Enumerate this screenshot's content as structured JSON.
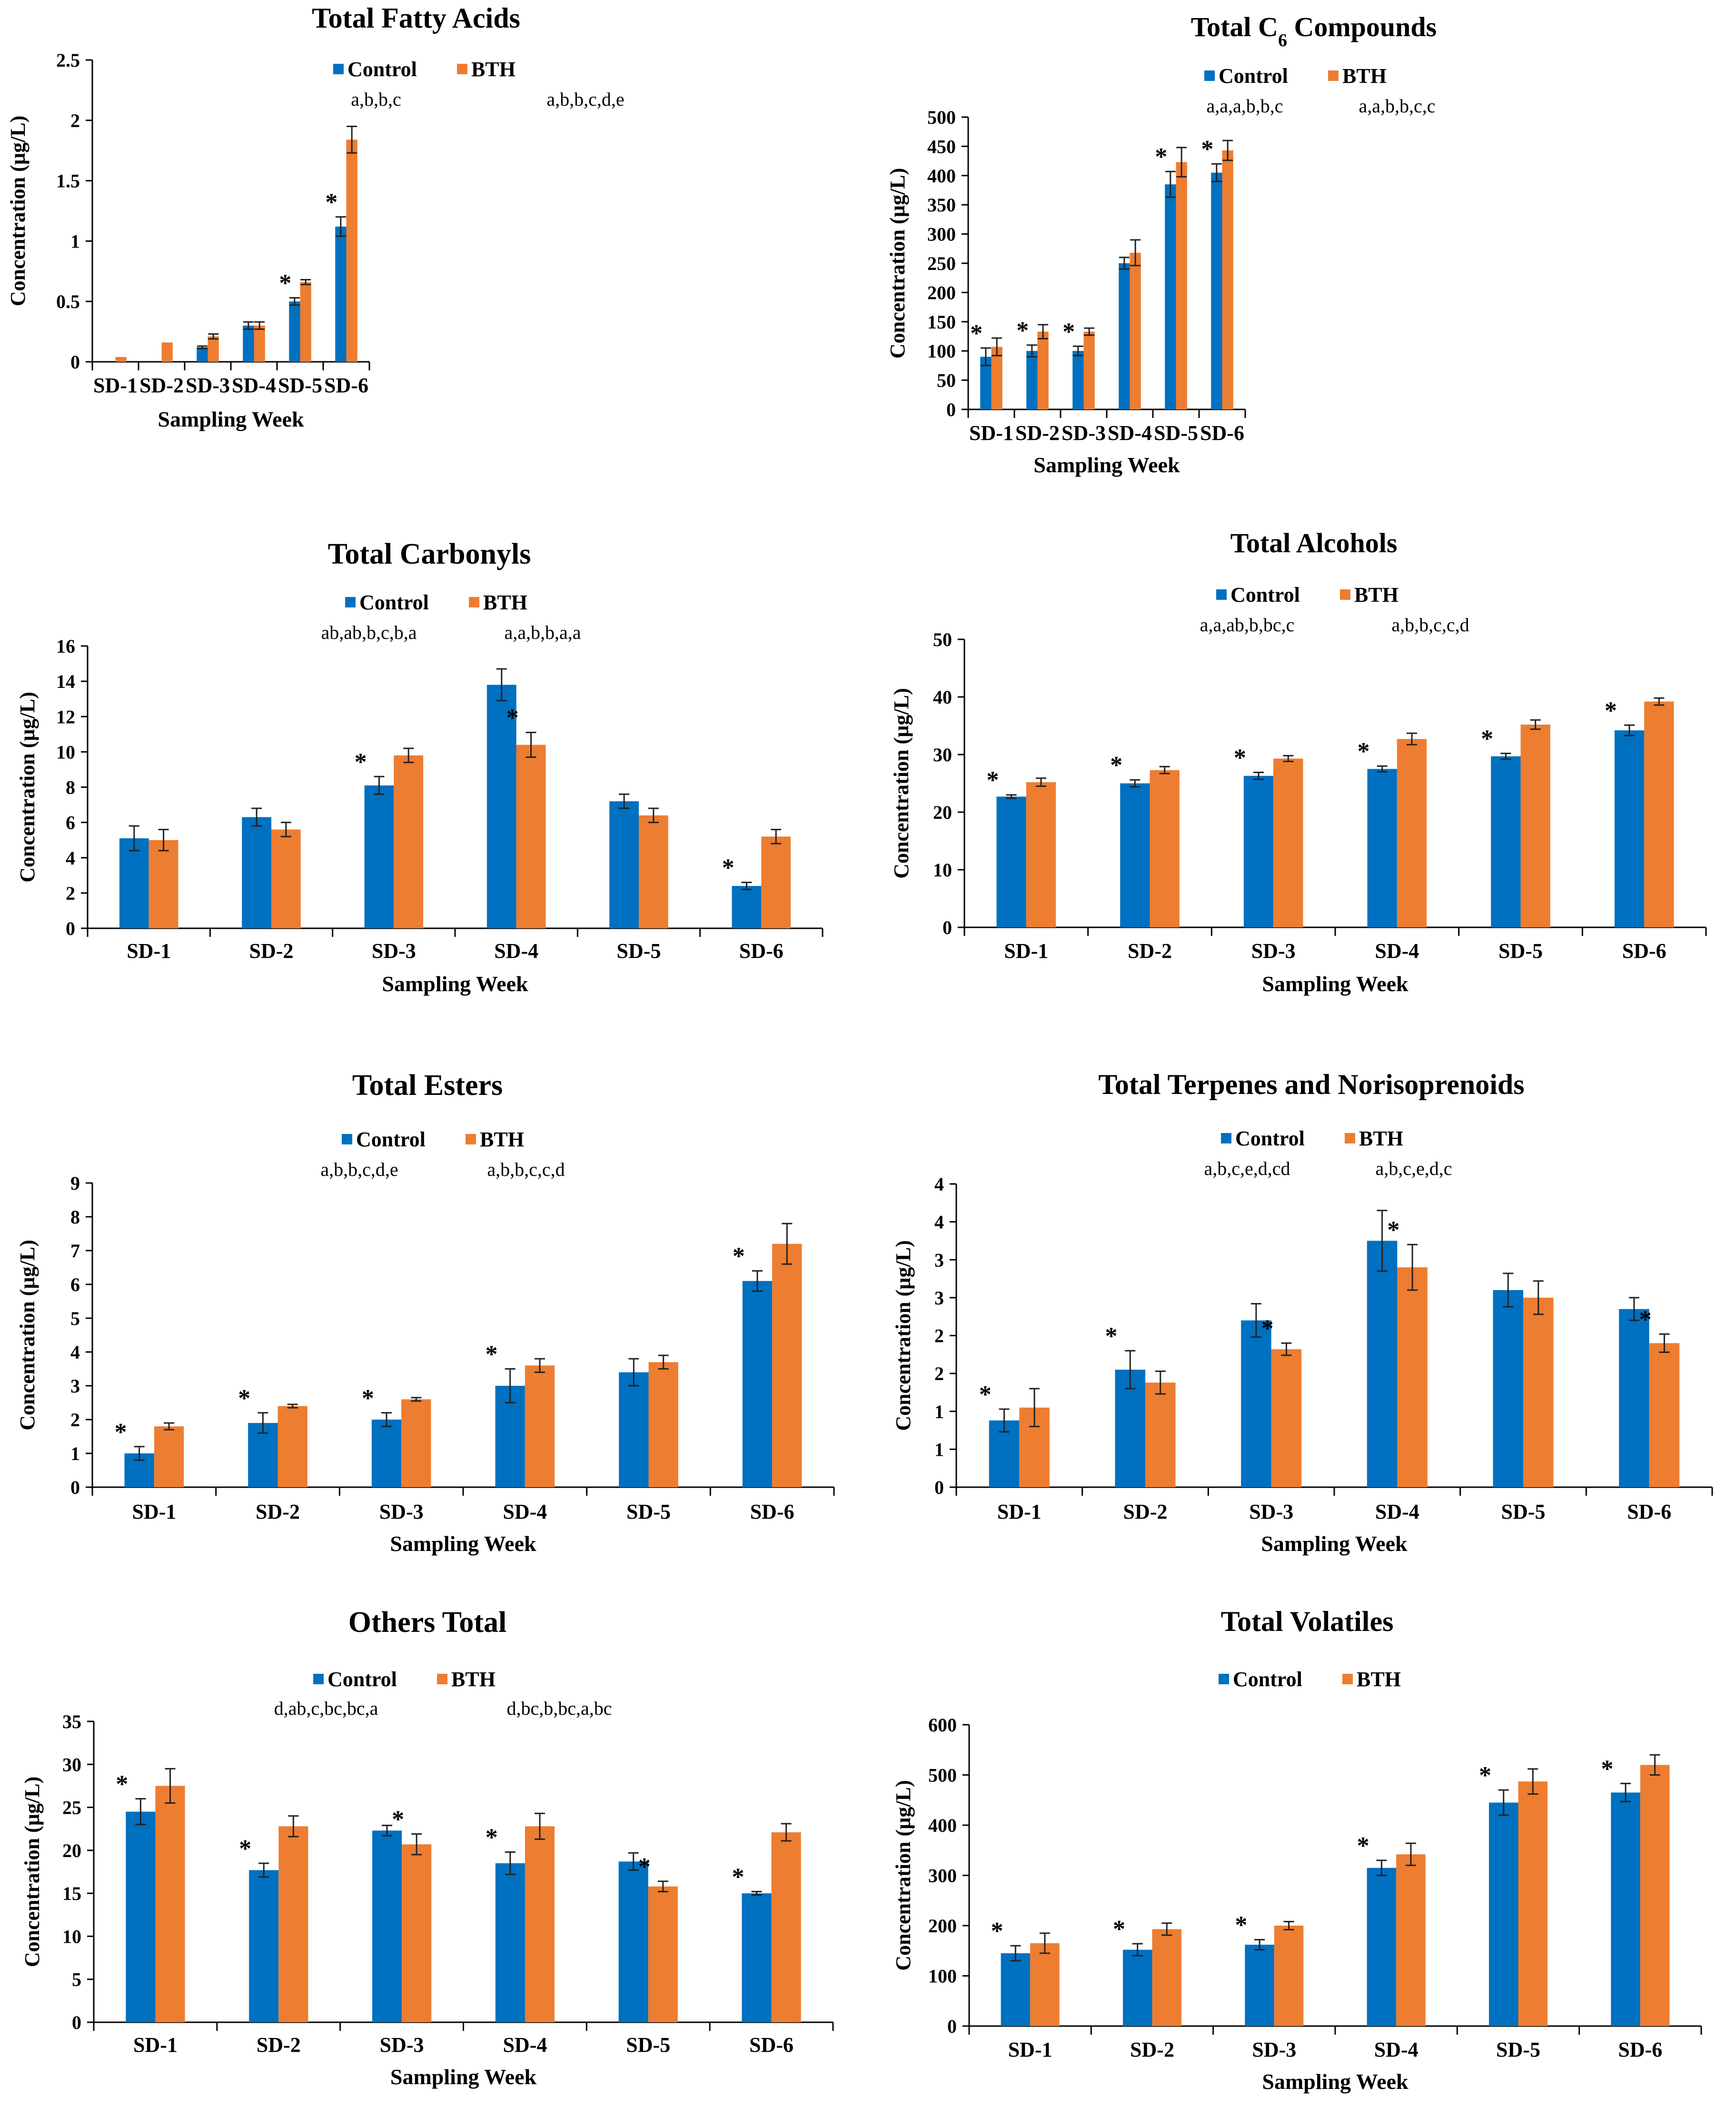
{
  "colors": {
    "control": "#0070C0",
    "bth": "#ED7D31",
    "axis": "#000000",
    "error": "#222222"
  },
  "legend": {
    "control": "Control",
    "bth": "BTH"
  },
  "chart_data": [
    {
      "type": "bar",
      "title": "Total Fatty Acids",
      "xlabel": "Sampling Week",
      "ylabel": "Concentration  (µg/L)",
      "categories": [
        "SD-1",
        "SD-2",
        "SD-3",
        "SD-4",
        "SD-5",
        "SD-6"
      ],
      "ylim": [
        0,
        2.5
      ],
      "yticks": [
        "0",
        "0.5",
        "1",
        "1.5",
        "2",
        "2.5"
      ],
      "series": [
        {
          "name": "Control",
          "values": [
            0,
            0,
            0.12,
            0.3,
            0.5,
            1.12
          ],
          "errors": [
            0,
            0,
            0.01,
            0.03,
            0.03,
            0.08
          ]
        },
        {
          "name": "BTH",
          "values": [
            0.04,
            0.16,
            0.21,
            0.3,
            0.66,
            1.84
          ],
          "errors": [
            0,
            0,
            0.02,
            0.03,
            0.02,
            0.11
          ]
        }
      ],
      "stars": [
        [
          "",
          ""
        ],
        [
          "",
          ""
        ],
        [
          "",
          ""
        ],
        [
          "",
          ""
        ],
        [
          "*",
          ""
        ],
        [
          "*",
          ""
        ]
      ],
      "letters": [
        "a,b,b,c",
        "a,b,b,c,d,e"
      ]
    },
    {
      "type": "bar",
      "title": "Total C6 Compounds",
      "xlabel": "Sampling Week",
      "ylabel": "Concentration (µg/L)",
      "categories": [
        "SD-1",
        "SD-2",
        "SD-3",
        "SD-4",
        "SD-5",
        "SD-6"
      ],
      "ylim": [
        0,
        500
      ],
      "yticks": [
        "0",
        "50",
        "100",
        "150",
        "200",
        "250",
        "300",
        "350",
        "400",
        "450",
        "500"
      ],
      "series": [
        {
          "name": "Control",
          "values": [
            90,
            100,
            100,
            250,
            385,
            405
          ],
          "errors": [
            15,
            10,
            8,
            10,
            22,
            15
          ]
        },
        {
          "name": "BTH",
          "values": [
            107,
            133,
            133,
            268,
            423,
            443
          ],
          "errors": [
            15,
            12,
            6,
            22,
            25,
            17
          ]
        }
      ],
      "stars": [
        [
          "*",
          ""
        ],
        [
          "*",
          ""
        ],
        [
          "*",
          ""
        ],
        [
          "",
          ""
        ],
        [
          "*",
          ""
        ],
        [
          "*",
          ""
        ]
      ],
      "letters": [
        "a,a,a,b,b,c",
        "a,a,b,b,c,c"
      ]
    },
    {
      "type": "bar",
      "title": "Total Carbonyls",
      "xlabel": "Sampling Week",
      "ylabel": "Concentration  (µg/L)",
      "categories": [
        "SD-1",
        "SD-2",
        "SD-3",
        "SD-4",
        "SD-5",
        "SD-6"
      ],
      "ylim": [
        0,
        16
      ],
      "yticks": [
        "0",
        "2",
        "4",
        "6",
        "8",
        "10",
        "12",
        "14",
        "16"
      ],
      "series": [
        {
          "name": "Control",
          "values": [
            5.1,
            6.3,
            8.1,
            13.8,
            7.2,
            2.4
          ],
          "errors": [
            0.7,
            0.5,
            0.5,
            0.9,
            0.4,
            0.2
          ]
        },
        {
          "name": "BTH",
          "values": [
            5.0,
            5.6,
            9.8,
            10.4,
            6.4,
            5.2
          ],
          "errors": [
            0.6,
            0.4,
            0.4,
            0.7,
            0.4,
            0.4
          ]
        }
      ],
      "stars": [
        [
          "",
          ""
        ],
        [
          "",
          ""
        ],
        [
          "*",
          ""
        ],
        [
          "",
          "*"
        ],
        [
          "",
          ""
        ],
        [
          "*",
          ""
        ]
      ],
      "letters": [
        "ab,ab,b,c,b,a",
        "a,a,b,b,a,a"
      ]
    },
    {
      "type": "bar",
      "title": "Total Alcohols",
      "xlabel": "Sampling Week",
      "ylabel": "Concentration  (µg/L)",
      "categories": [
        "SD-1",
        "SD-2",
        "SD-3",
        "SD-4",
        "SD-5",
        "SD-6"
      ],
      "ylim": [
        0,
        50
      ],
      "yticks": [
        "0",
        "10",
        "20",
        "30",
        "40",
        "50"
      ],
      "series": [
        {
          "name": "Control",
          "values": [
            22.7,
            25.0,
            26.3,
            27.5,
            29.7,
            34.2
          ],
          "errors": [
            0.3,
            0.6,
            0.6,
            0.5,
            0.5,
            0.9
          ]
        },
        {
          "name": "BTH",
          "values": [
            25.2,
            27.3,
            29.3,
            32.7,
            35.2,
            39.2
          ],
          "errors": [
            0.7,
            0.6,
            0.5,
            1.0,
            0.8,
            0.6
          ]
        }
      ],
      "stars": [
        [
          "*",
          ""
        ],
        [
          "*",
          ""
        ],
        [
          "*",
          ""
        ],
        [
          "*",
          ""
        ],
        [
          "*",
          ""
        ],
        [
          "*",
          ""
        ]
      ],
      "letters": [
        "a,a,ab,b,bc,c",
        "a,b,b,c,c,d"
      ]
    },
    {
      "type": "bar",
      "title": "Total Esters",
      "xlabel": "Sampling Week",
      "ylabel": "Concentration  (µg/L)",
      "categories": [
        "SD-1",
        "SD-2",
        "SD-3",
        "SD-4",
        "SD-5",
        "SD-6"
      ],
      "ylim": [
        0,
        9
      ],
      "yticks": [
        "0",
        "1",
        "2",
        "3",
        "4",
        "5",
        "6",
        "7",
        "8",
        "9"
      ],
      "series": [
        {
          "name": "Control",
          "values": [
            1.0,
            1.9,
            2.0,
            3.0,
            3.4,
            6.1
          ],
          "errors": [
            0.2,
            0.3,
            0.2,
            0.5,
            0.4,
            0.3
          ]
        },
        {
          "name": "BTH",
          "values": [
            1.8,
            2.4,
            2.6,
            3.6,
            3.7,
            7.2
          ],
          "errors": [
            0.1,
            0.05,
            0.05,
            0.2,
            0.2,
            0.6
          ]
        }
      ],
      "stars": [
        [
          "*",
          ""
        ],
        [
          "*",
          ""
        ],
        [
          "*",
          ""
        ],
        [
          "*",
          ""
        ],
        [
          "",
          ""
        ],
        [
          "*",
          ""
        ]
      ],
      "letters": [
        "a,b,b,c,d,e",
        "a,b,b,c,c,d"
      ]
    },
    {
      "type": "bar",
      "title": "Total Terpenes and Norisoprenoids",
      "xlabel": "Sampling Week",
      "ylabel": "Concentration  (µg/L)",
      "categories": [
        "SD-1",
        "SD-2",
        "SD-3",
        "SD-4",
        "SD-5",
        "SD-6"
      ],
      "ylim": [
        0,
        4
      ],
      "yticks": [
        "0",
        "1",
        "1",
        "2",
        "2",
        "3",
        "3",
        "4",
        "4"
      ],
      "series": [
        {
          "name": "Control",
          "values": [
            0.88,
            1.55,
            2.2,
            3.25,
            2.6,
            2.35
          ],
          "errors": [
            0.15,
            0.25,
            0.22,
            0.4,
            0.22,
            0.15
          ]
        },
        {
          "name": "BTH",
          "values": [
            1.05,
            1.38,
            1.82,
            2.9,
            2.5,
            1.9
          ],
          "errors": [
            0.25,
            0.15,
            0.08,
            0.3,
            0.22,
            0.12
          ]
        }
      ],
      "stars": [
        [
          "*",
          ""
        ],
        [
          "*",
          ""
        ],
        [
          "",
          "*"
        ],
        [
          "",
          "*"
        ],
        [
          "",
          ""
        ],
        [
          "",
          "*"
        ]
      ],
      "letters": [
        "a,b,c,e,d,cd",
        "a,b,c,e,d,c"
      ]
    },
    {
      "type": "bar",
      "title": "Others Total",
      "xlabel": "Sampling Week",
      "ylabel": "Concentration  (µg/L)",
      "categories": [
        "SD-1",
        "SD-2",
        "SD-3",
        "SD-4",
        "SD-5",
        "SD-6"
      ],
      "ylim": [
        0,
        35
      ],
      "yticks": [
        "0",
        "5",
        "10",
        "15",
        "20",
        "25",
        "30",
        "35"
      ],
      "series": [
        {
          "name": "Control",
          "values": [
            24.5,
            17.7,
            22.3,
            18.5,
            18.7,
            15.0
          ],
          "errors": [
            1.5,
            0.8,
            0.6,
            1.3,
            1.0,
            0.2
          ]
        },
        {
          "name": "BTH",
          "values": [
            27.5,
            22.8,
            20.7,
            22.8,
            15.8,
            22.1
          ],
          "errors": [
            2.0,
            1.2,
            1.2,
            1.5,
            0.6,
            1.0
          ]
        }
      ],
      "stars": [
        [
          "*",
          ""
        ],
        [
          "*",
          ""
        ],
        [
          "",
          "*"
        ],
        [
          "*",
          ""
        ],
        [
          "",
          "*"
        ],
        [
          "*",
          ""
        ]
      ],
      "letters": [
        "d,ab,c,bc,bc,a",
        "d,bc,b,bc,a,bc"
      ]
    },
    {
      "type": "bar",
      "title": "Total Volatiles",
      "xlabel": "Sampling Week",
      "ylabel": "Concentration  (µg/L)",
      "categories": [
        "SD-1",
        "SD-2",
        "SD-3",
        "SD-4",
        "SD-5",
        "SD-6"
      ],
      "ylim": [
        0,
        600
      ],
      "yticks": [
        "0",
        "100",
        "200",
        "300",
        "400",
        "500",
        "600"
      ],
      "series": [
        {
          "name": "Control",
          "values": [
            145,
            152,
            162,
            315,
            445,
            465
          ],
          "errors": [
            15,
            12,
            10,
            15,
            25,
            18
          ]
        },
        {
          "name": "BTH",
          "values": [
            165,
            193,
            200,
            342,
            487,
            520
          ],
          "errors": [
            20,
            12,
            8,
            22,
            25,
            20
          ]
        }
      ],
      "stars": [
        [
          "*",
          ""
        ],
        [
          "*",
          ""
        ],
        [
          "*",
          ""
        ],
        [
          "*",
          ""
        ],
        [
          "*",
          ""
        ],
        [
          "*",
          ""
        ]
      ],
      "letters": [
        "",
        ""
      ]
    }
  ]
}
